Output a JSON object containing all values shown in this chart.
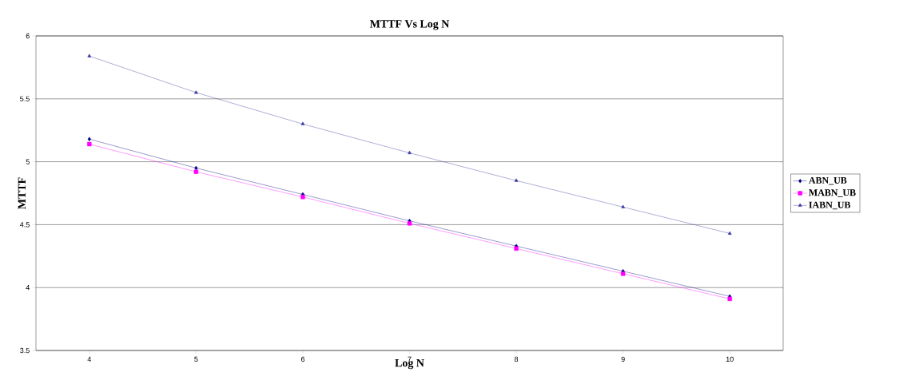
{
  "chart_data": {
    "type": "line",
    "title": "MTTF Vs Log N",
    "xlabel": "Log N",
    "ylabel": "MTTF",
    "categories": [
      "4",
      "5",
      "6",
      "7",
      "8",
      "9",
      "10"
    ],
    "series": [
      {
        "name": "ABN_UB",
        "color": "#000080",
        "marker": "diamond",
        "values": [
          5.18,
          4.95,
          4.74,
          4.53,
          4.33,
          4.13,
          3.93
        ]
      },
      {
        "name": "MABN_UB",
        "color": "#ff00ff",
        "marker": "square",
        "values": [
          5.14,
          4.92,
          4.72,
          4.51,
          4.31,
          4.11,
          3.91
        ]
      },
      {
        "name": "IABN_UB",
        "color": "#3333a0",
        "marker": "triangle",
        "values": [
          5.84,
          5.55,
          5.3,
          5.07,
          4.85,
          4.64,
          4.43
        ]
      }
    ],
    "ylim": [
      3.5,
      6
    ],
    "yticks": [
      3.5,
      4,
      4.5,
      5,
      5.5,
      6
    ],
    "grid": "y",
    "legend": "right"
  }
}
